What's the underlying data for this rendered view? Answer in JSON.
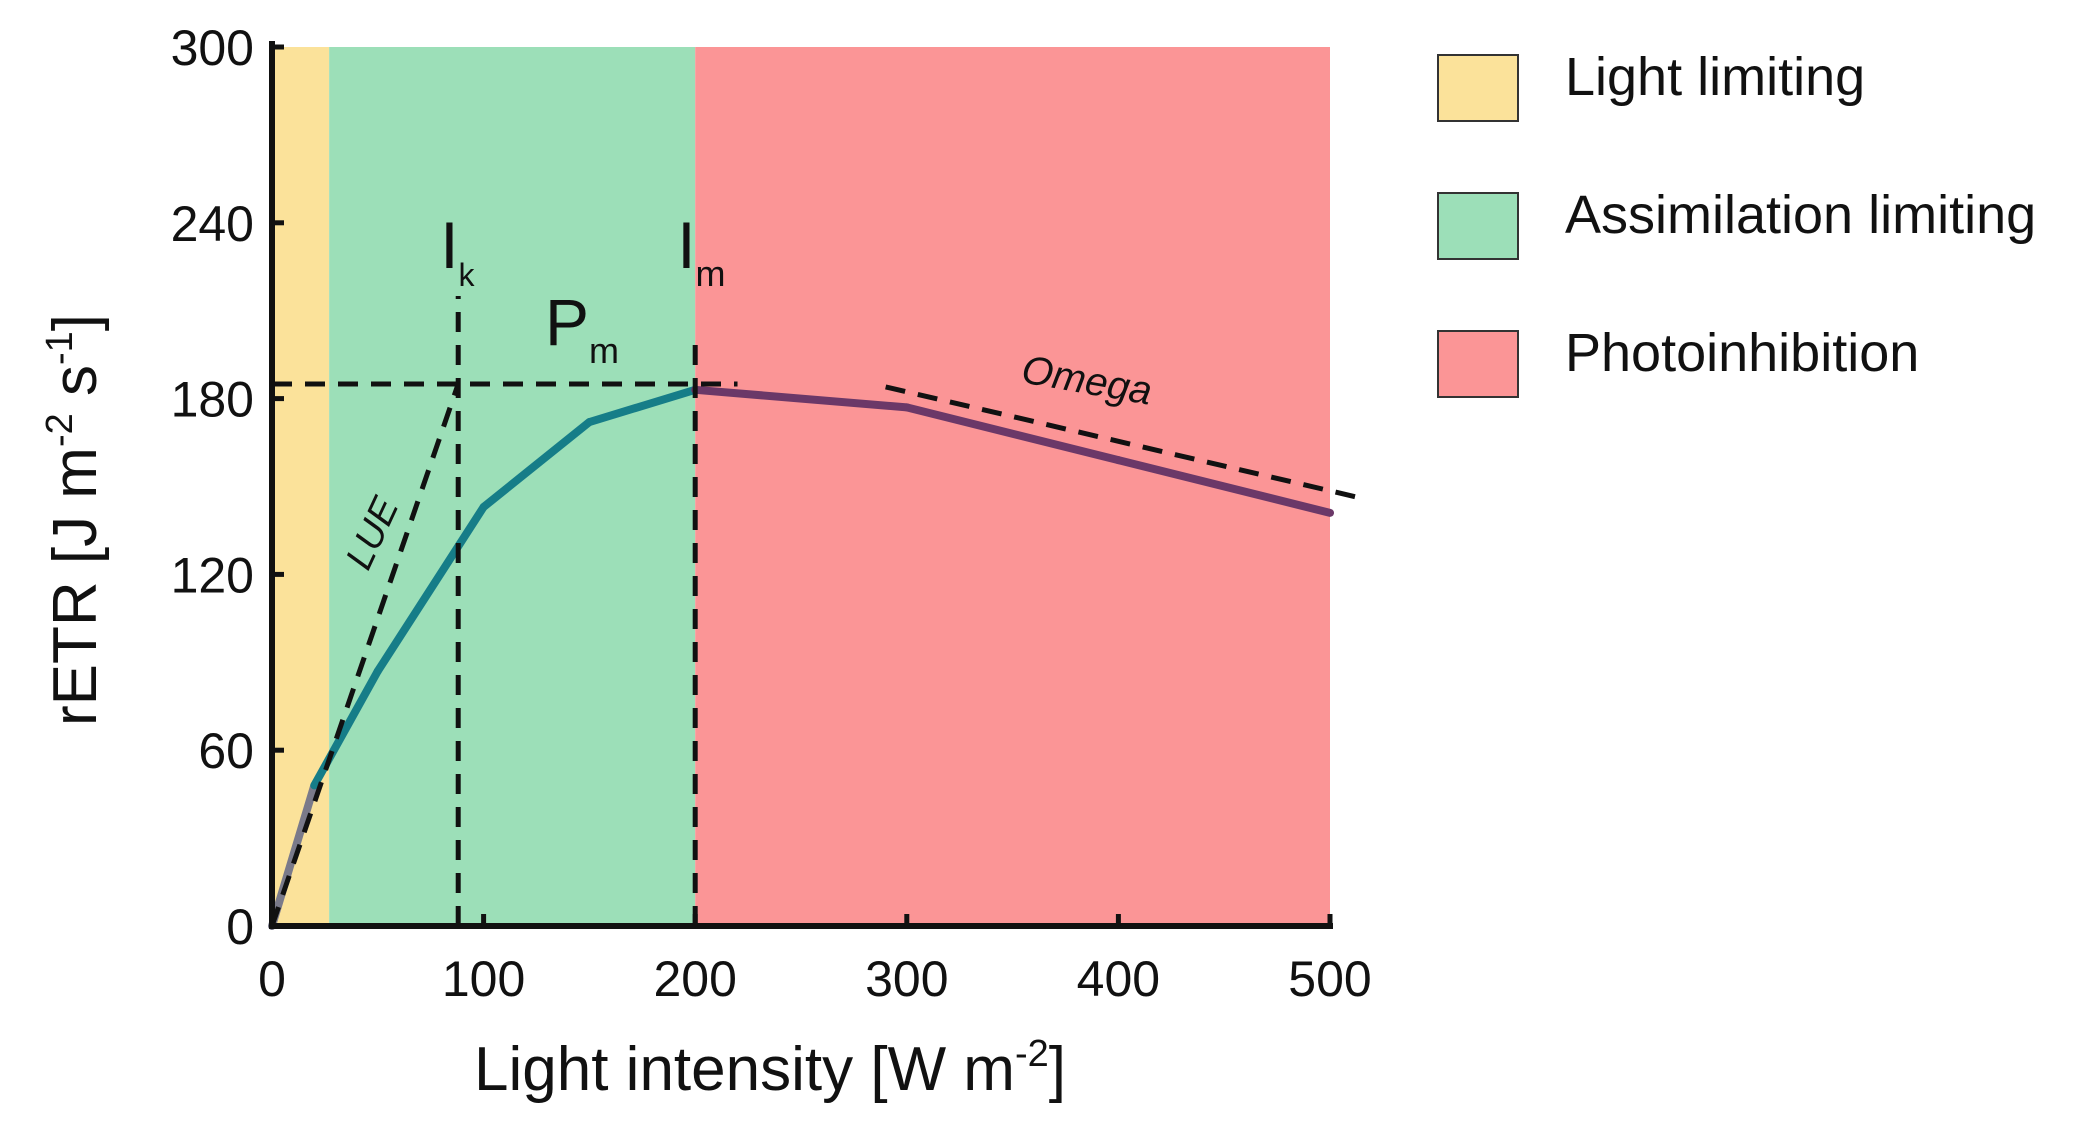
{
  "chart_data": {
    "type": "line",
    "xlabel": "Light intensity [W m",
    "xlabel_sup": "-2",
    "xlabel_end": "]",
    "ylabel": "rETR [J m",
    "ylabel_sup1": "-2",
    "ylabel_mid": " s",
    "ylabel_sup2": "-1",
    "ylabel_end": "]",
    "xlim": [
      0,
      500
    ],
    "ylim": [
      0,
      300
    ],
    "xticks": [
      0,
      100,
      200,
      300,
      400,
      500
    ],
    "yticks": [
      0,
      60,
      120,
      180,
      240,
      300
    ],
    "regions": [
      {
        "name": "Light limiting",
        "x_start": 0,
        "x_end": 27,
        "color": "#fbe29a"
      },
      {
        "name": "Assimilation limiting",
        "x_start": 27,
        "x_end": 200,
        "color": "#9cdfb8"
      },
      {
        "name": "Photoinhibition",
        "x_start": 200,
        "x_end": 500,
        "color": "#fb9596"
      }
    ],
    "series": [
      {
        "name": "rETR curve",
        "x": [
          0,
          20,
          50,
          100,
          150,
          200,
          300,
          400,
          500
        ],
        "y": [
          0,
          48,
          87,
          143,
          172,
          183,
          177,
          159,
          141
        ],
        "colors": [
          "#7a7a8a",
          "#167d88",
          "#6b3868"
        ]
      }
    ],
    "reference_lines": {
      "LUE": {
        "label": "LUE",
        "x": [
          0,
          88
        ],
        "y": [
          0,
          185
        ]
      },
      "Pm": {
        "label": "P",
        "sub": "m",
        "y": 185,
        "x": [
          0,
          220
        ]
      },
      "Ik": {
        "label": "I",
        "sub": "k",
        "x": 88,
        "y": [
          0,
          215
        ]
      },
      "Im": {
        "label": "I",
        "sub": "m",
        "x": 200,
        "y": [
          0,
          200
        ]
      },
      "Omega": {
        "label": "Omega",
        "x": [
          290,
          515
        ],
        "y": [
          184,
          146
        ]
      }
    },
    "legend": {
      "position": "right",
      "items": [
        {
          "label": "Light limiting",
          "color": "#fbe29a"
        },
        {
          "label": "Assimilation limiting",
          "color": "#9cdfb8"
        },
        {
          "label": "Photoinhibition",
          "color": "#fb9596"
        }
      ]
    }
  }
}
